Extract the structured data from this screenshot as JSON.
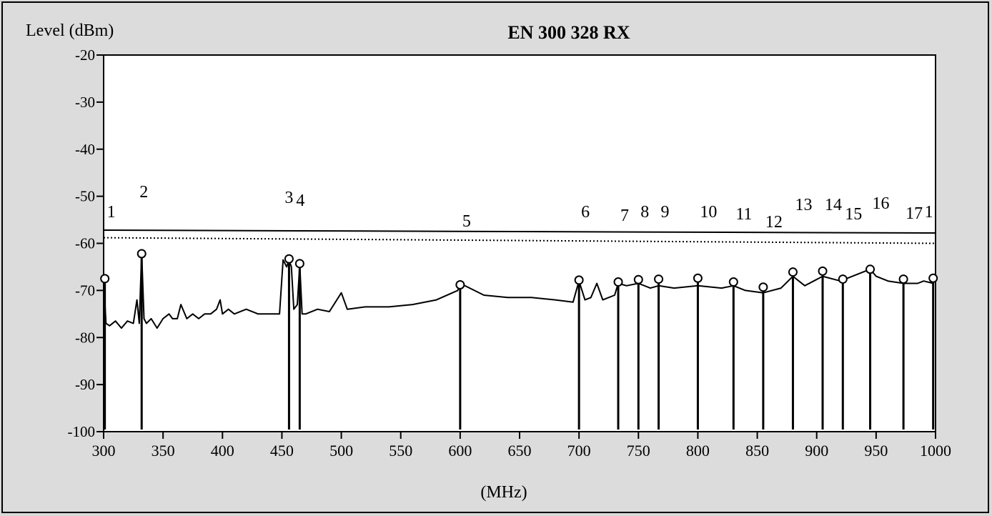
{
  "chart_data": {
    "type": "line",
    "title": "EN 300 328 RX",
    "ylabel": "Level (dBm)",
    "xlabel": "(MHz)",
    "xlim": [
      300,
      1000
    ],
    "ylim": [
      -100,
      -20
    ],
    "xticks": [
      300,
      350,
      400,
      450,
      500,
      550,
      600,
      650,
      700,
      750,
      800,
      850,
      900,
      950,
      1000
    ],
    "yticks": [
      -20,
      -30,
      -40,
      -50,
      -60,
      -70,
      -80,
      -90,
      -100
    ],
    "limit_line": {
      "y_start": -57.2,
      "y_end": -57.8,
      "style": "solid"
    },
    "margin_line": {
      "y_start": -58.8,
      "y_end": -60.0,
      "style": "dotted"
    },
    "trace": {
      "x": [
        300,
        302,
        305,
        310,
        315,
        320,
        325,
        328,
        330,
        332,
        334,
        336,
        340,
        345,
        350,
        355,
        358,
        362,
        365,
        370,
        375,
        380,
        385,
        390,
        395,
        398,
        400,
        405,
        410,
        420,
        430,
        440,
        448,
        451,
        454,
        456,
        458,
        460,
        463,
        465,
        467,
        470,
        480,
        490,
        500,
        505,
        520,
        540,
        560,
        580,
        598,
        600,
        620,
        640,
        660,
        680,
        695,
        700,
        705,
        710,
        715,
        720,
        730,
        733,
        740,
        750,
        760,
        767,
        780,
        800,
        820,
        830,
        840,
        855,
        870,
        880,
        890,
        905,
        920,
        930,
        945,
        950,
        960,
        973,
        985,
        990,
        998,
        1000
      ],
      "y": [
        -67.5,
        -77,
        -77.5,
        -76.5,
        -78,
        -76.5,
        -77,
        -72,
        -77,
        -62,
        -76,
        -77,
        -76,
        -78,
        -76,
        -75,
        -76,
        -76,
        -73,
        -76,
        -75,
        -76,
        -75,
        -75,
        -74,
        -72,
        -75,
        -74,
        -75,
        -74,
        -75,
        -75,
        -75,
        -63.5,
        -65,
        -63.5,
        -65,
        -74,
        -73,
        -64.5,
        -75,
        -75,
        -74,
        -74.5,
        -70.5,
        -74,
        -73.5,
        -73.5,
        -73,
        -72,
        -70,
        -68.5,
        -71,
        -71.5,
        -71.5,
        -72,
        -72.5,
        -68,
        -72,
        -71.5,
        -68.5,
        -72,
        -71,
        -68.5,
        -69,
        -68.5,
        -69.5,
        -69,
        -69.5,
        -69,
        -69.5,
        -69,
        -70,
        -70.5,
        -69.5,
        -67,
        -69,
        -67,
        -68,
        -67,
        -65.5,
        -67,
        -68,
        -68.5,
        -68.5,
        -68,
        -68.5,
        -67.5
      ]
    },
    "markers": [
      {
        "label": "1",
        "freq": 301,
        "level": -67.5
      },
      {
        "label": "2",
        "freq": 332,
        "level": -62.2
      },
      {
        "label": "3",
        "freq": 456,
        "level": -63.3
      },
      {
        "label": "4",
        "freq": 465,
        "level": -64.3
      },
      {
        "label": "5",
        "freq": 600,
        "level": -68.8
      },
      {
        "label": "6",
        "freq": 700,
        "level": -67.8
      },
      {
        "label": "7",
        "freq": 733,
        "level": -68.2
      },
      {
        "label": "8",
        "freq": 750,
        "level": -67.7
      },
      {
        "label": "9",
        "freq": 767,
        "level": -67.6
      },
      {
        "label": "10",
        "freq": 800,
        "level": -67.4
      },
      {
        "label": "11",
        "freq": 830,
        "level": -68.2
      },
      {
        "label": "12",
        "freq": 855,
        "level": -69.3
      },
      {
        "label": "13",
        "freq": 880,
        "level": -66.1
      },
      {
        "label": "14",
        "freq": 905,
        "level": -65.9
      },
      {
        "label": "15",
        "freq": 922,
        "level": -67.6
      },
      {
        "label": "16",
        "freq": 945,
        "level": -65.5
      },
      {
        "label": "17",
        "freq": 973,
        "level": -67.6
      },
      {
        "label": "1",
        "freq": 998,
        "level": -67.4
      }
    ]
  }
}
